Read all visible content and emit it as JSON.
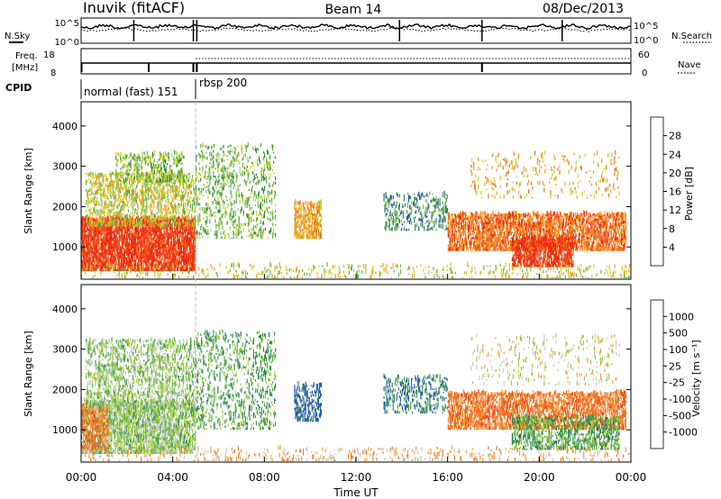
{
  "header": {
    "station": "Inuvik (fitACF)",
    "beam": "Beam 14",
    "date": "08/Dec/2013"
  },
  "side_labels": {
    "nsky": "N.Sky",
    "freq_line1": "Freq.",
    "freq_line2": "[MHz]",
    "cpid": "CPID",
    "nsearch": "N.Search",
    "nave": "Nave"
  },
  "cpid_segments": [
    {
      "label": "normal (fast) 151",
      "start_hour": 0,
      "end_hour": 5.0
    },
    {
      "label": "rbsp 200",
      "start_hour": 5.0,
      "end_hour": 24
    }
  ],
  "time_axis": {
    "label": "Time UT",
    "ticks": [
      "00:00",
      "04:00",
      "08:00",
      "12:00",
      "16:00",
      "20:00",
      "00:00"
    ]
  },
  "colors": {
    "power_scale": [
      "#2222ee",
      "#2250b0",
      "#2e8b3a",
      "#66b24a",
      "#c8d02a",
      "#f0a020",
      "#f07020",
      "#ee2a10"
    ],
    "velocity_scale": [
      "#ee2010",
      "#f04a18",
      "#f07820",
      "#f0a040",
      "#c8c8c8",
      "#99cc33",
      "#44a050",
      "#2b7a5a",
      "#2255bb"
    ]
  },
  "chart_data": [
    {
      "type": "line",
      "panel": "noise",
      "left_ticks": [
        "10^5",
        "10^0"
      ],
      "right_ticks": [
        "10^5",
        "10^0"
      ],
      "left_label": "N.Sky",
      "right_label": "N.Search",
      "series": [
        {
          "name": "N.Sky",
          "style": "solid"
        },
        {
          "name": "N.Search",
          "style": "dotted"
        }
      ]
    },
    {
      "type": "line",
      "panel": "frequency",
      "left_ticks": [
        "18",
        "8"
      ],
      "right_ticks": [
        "60",
        "0"
      ],
      "left_label": "Freq. [MHz]",
      "right_label": "Nave",
      "series": [
        {
          "name": "Freq.",
          "style": "solid"
        },
        {
          "name": "Nave",
          "style": "dotted"
        }
      ]
    },
    {
      "type": "heatmap",
      "panel": "power",
      "ylabel": "Slant Range [km]",
      "yticks": [
        1000,
        2000,
        3000,
        4000
      ],
      "ylim": [
        200,
        4600
      ],
      "xlim_hours": [
        0,
        24
      ],
      "colorbar": {
        "label": "Power [dB]",
        "ticks": [
          "4",
          "8",
          "12",
          "16",
          "20",
          "24",
          "28"
        ]
      },
      "scatter_regions": [
        {
          "t0": 0.0,
          "t1": 5.0,
          "r0": 400,
          "r1": 1700,
          "level": 7,
          "density": 0.9
        },
        {
          "t0": 0.2,
          "t1": 5.0,
          "r0": 1500,
          "r1": 2800,
          "level": 4,
          "density": 0.5
        },
        {
          "t0": 1.5,
          "t1": 4.5,
          "r0": 2600,
          "r1": 3300,
          "level": 3,
          "density": 0.35
        },
        {
          "t0": 5.0,
          "t1": 8.5,
          "r0": 1200,
          "r1": 3500,
          "level": 3,
          "density": 0.25
        },
        {
          "t0": 9.3,
          "t1": 10.5,
          "r0": 1200,
          "r1": 2100,
          "level": 5,
          "density": 0.7
        },
        {
          "t0": 13.2,
          "t1": 16.0,
          "r0": 1400,
          "r1": 2300,
          "level": 2,
          "density": 0.3
        },
        {
          "t0": 16.0,
          "t1": 23.8,
          "r0": 900,
          "r1": 1800,
          "level": 6,
          "density": 0.75
        },
        {
          "t0": 18.8,
          "t1": 21.5,
          "r0": 500,
          "r1": 1200,
          "level": 7,
          "density": 0.8
        },
        {
          "t0": 17.0,
          "t1": 23.5,
          "r0": 2200,
          "r1": 3300,
          "level": 5,
          "density": 0.1
        },
        {
          "t0": 0.0,
          "t1": 24.0,
          "r0": 220,
          "r1": 520,
          "level": 4,
          "density": 0.18
        }
      ]
    },
    {
      "type": "heatmap",
      "panel": "velocity",
      "ylabel": "Slant Range [km]",
      "yticks": [
        1000,
        2000,
        3000,
        4000
      ],
      "ylim": [
        200,
        4600
      ],
      "xlim_hours": [
        0,
        24
      ],
      "colorbar": {
        "label": "Velocity [m s⁻¹]",
        "ticks": [
          "1000",
          "500",
          "100",
          "25",
          "-25",
          "-100",
          "-500",
          "-1000"
        ]
      },
      "scatter_regions": [
        {
          "t0": 0.0,
          "t1": 5.0,
          "r0": 400,
          "r1": 1700,
          "level": 5,
          "density": 0.75
        },
        {
          "t0": 0.0,
          "t1": 1.2,
          "r0": 500,
          "r1": 1600,
          "level": 2,
          "density": 0.6
        },
        {
          "t0": 0.2,
          "t1": 5.0,
          "r0": 1500,
          "r1": 3200,
          "level": 5,
          "density": 0.45
        },
        {
          "t0": 5.0,
          "t1": 8.5,
          "r0": 1000,
          "r1": 3400,
          "level": 6,
          "density": 0.25
        },
        {
          "t0": 9.3,
          "t1": 10.5,
          "r0": 1200,
          "r1": 2100,
          "level": 8,
          "density": 0.55
        },
        {
          "t0": 13.2,
          "t1": 16.0,
          "r0": 1400,
          "r1": 2300,
          "level": 7,
          "density": 0.3
        },
        {
          "t0": 16.0,
          "t1": 23.8,
          "r0": 1000,
          "r1": 1900,
          "level": 2,
          "density": 0.7
        },
        {
          "t0": 18.8,
          "t1": 23.5,
          "r0": 500,
          "r1": 1300,
          "level": 6,
          "density": 0.55
        },
        {
          "t0": 17.0,
          "t1": 23.5,
          "r0": 2100,
          "r1": 3300,
          "level": 4,
          "density": 0.12
        },
        {
          "t0": 0.0,
          "t1": 24.0,
          "r0": 220,
          "r1": 520,
          "level": 3,
          "density": 0.15
        }
      ]
    }
  ]
}
